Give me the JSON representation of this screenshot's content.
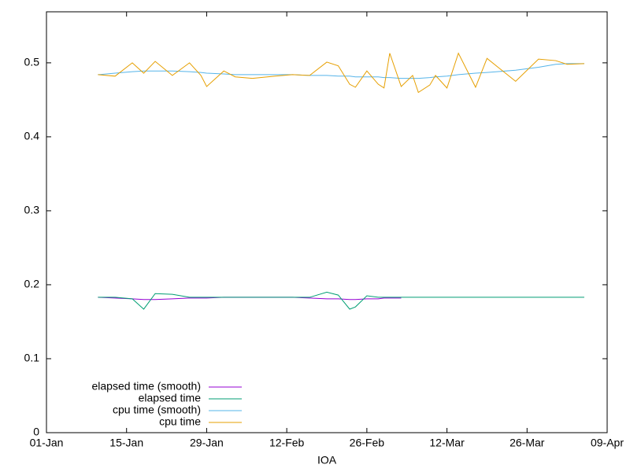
{
  "chart_data": {
    "type": "line",
    "xlabel": "IOA",
    "x": [
      "10-Jan",
      "13-Jan",
      "16-Jan",
      "18-Jan",
      "20-Jan",
      "23-Jan",
      "26-Jan",
      "28-Jan",
      "29-Jan",
      "01-Feb",
      "03-Feb",
      "06-Feb",
      "10-Feb",
      "13-Feb",
      "16-Feb",
      "19-Feb",
      "21-Feb",
      "23-Feb",
      "24-Feb",
      "26-Feb",
      "28-Feb",
      "01-Mar",
      "02-Mar",
      "04-Mar",
      "06-Mar",
      "07-Mar",
      "09-Mar",
      "10-Mar",
      "12-Mar",
      "14-Mar",
      "17-Mar",
      "19-Mar",
      "24-Mar",
      "28-Mar",
      "31-Mar",
      "02-Apr",
      "05-Apr"
    ],
    "series": [
      {
        "name": "elapsed time (smooth)",
        "color": "#9400d3",
        "values": [
          0.183,
          0.182,
          0.181,
          0.18,
          0.18,
          0.181,
          0.182,
          0.182,
          0.182,
          0.183,
          0.183,
          0.183,
          0.183,
          0.183,
          0.182,
          0.181,
          0.181,
          0.18,
          0.18,
          0.181,
          0.181,
          0.182,
          0.182,
          0.182,
          null,
          null,
          null,
          null,
          null,
          null,
          null,
          null,
          null,
          null,
          null,
          null,
          null
        ]
      },
      {
        "name": "elapsed time",
        "color": "#009e73",
        "values": [
          0.183,
          0.183,
          0.181,
          0.167,
          0.188,
          0.187,
          0.183,
          0.183,
          0.183,
          0.183,
          0.183,
          0.183,
          0.183,
          0.183,
          0.183,
          0.19,
          0.186,
          0.167,
          0.17,
          0.185,
          0.183,
          0.183,
          0.183,
          0.183,
          0.183,
          0.183,
          0.183,
          0.183,
          0.183,
          0.183,
          0.183,
          0.183,
          0.183,
          0.183,
          0.183,
          0.183,
          0.183
        ]
      },
      {
        "name": "cpu time (smooth)",
        "color": "#56b4e9",
        "values": [
          0.484,
          0.486,
          0.488,
          0.489,
          0.489,
          0.489,
          0.488,
          0.487,
          0.486,
          0.485,
          0.484,
          0.484,
          0.484,
          0.484,
          0.483,
          0.483,
          0.482,
          0.482,
          0.481,
          0.481,
          0.481,
          0.48,
          0.48,
          0.479,
          0.479,
          0.479,
          0.48,
          0.481,
          0.482,
          0.484,
          0.486,
          0.487,
          0.49,
          0.494,
          0.498,
          0.499,
          0.499
        ]
      },
      {
        "name": "cpu time",
        "color": "#e69f00",
        "values": [
          0.484,
          0.482,
          0.5,
          0.486,
          0.502,
          0.483,
          0.5,
          0.483,
          0.468,
          0.489,
          0.481,
          0.479,
          0.482,
          0.484,
          0.483,
          0.501,
          0.496,
          0.471,
          0.467,
          0.489,
          0.471,
          0.466,
          0.513,
          0.468,
          0.483,
          0.46,
          0.47,
          0.483,
          0.466,
          0.513,
          0.467,
          0.506,
          0.475,
          0.505,
          0.503,
          0.498,
          0.499
        ]
      }
    ],
    "xlim": [
      "01-Jan",
      "09-Apr"
    ],
    "xticks": [
      "01-Jan",
      "15-Jan",
      "29-Jan",
      "12-Feb",
      "26-Feb",
      "12-Mar",
      "26-Mar",
      "09-Apr"
    ],
    "ylim": [
      0,
      0.569
    ],
    "yticks": [
      0,
      0.1,
      0.2,
      0.3,
      0.4,
      0.5
    ],
    "grid": false,
    "legend": "bottom left"
  }
}
